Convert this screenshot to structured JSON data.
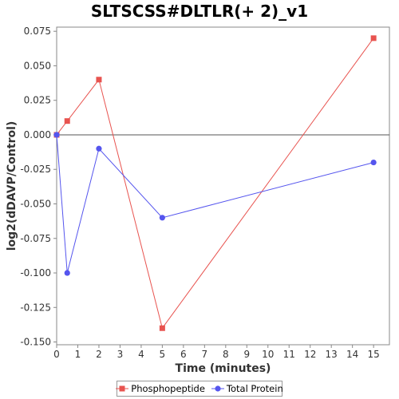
{
  "chart_data": {
    "type": "line",
    "title": "SLTSCSS#DLTLR(+ 2)_v1",
    "xlabel": "Time (minutes)",
    "ylabel": "log2(dDAVP/Control)",
    "xlim": [
      0,
      15.75
    ],
    "ylim": [
      -0.152,
      0.078
    ],
    "x_ticks": [
      0,
      1,
      2,
      3,
      4,
      5,
      6,
      7,
      8,
      9,
      10,
      11,
      12,
      13,
      14,
      15
    ],
    "y_ticks": [
      -0.15,
      -0.125,
      -0.1,
      -0.075,
      -0.05,
      -0.025,
      0.0,
      0.025,
      0.05,
      0.075
    ],
    "y_tick_labels": [
      "-0.150",
      "-0.125",
      "-0.100",
      "-0.075",
      "-0.050",
      "-0.025",
      "0.000",
      "0.025",
      "0.050",
      "0.075"
    ],
    "zero_line": true,
    "grid": false,
    "legend_position": "bottom",
    "series": [
      {
        "name": "Phosphopeptide",
        "color": "#e8534f",
        "marker": "square",
        "x": [
          0,
          0.5,
          2,
          5,
          15
        ],
        "y": [
          0.0,
          0.01,
          0.04,
          -0.14,
          0.07
        ]
      },
      {
        "name": "Total Protein",
        "color": "#5555ee",
        "marker": "circle",
        "x": [
          0,
          0.5,
          2,
          5,
          15
        ],
        "y": [
          0.0,
          -0.1,
          -0.01,
          -0.06,
          -0.02
        ]
      }
    ]
  }
}
